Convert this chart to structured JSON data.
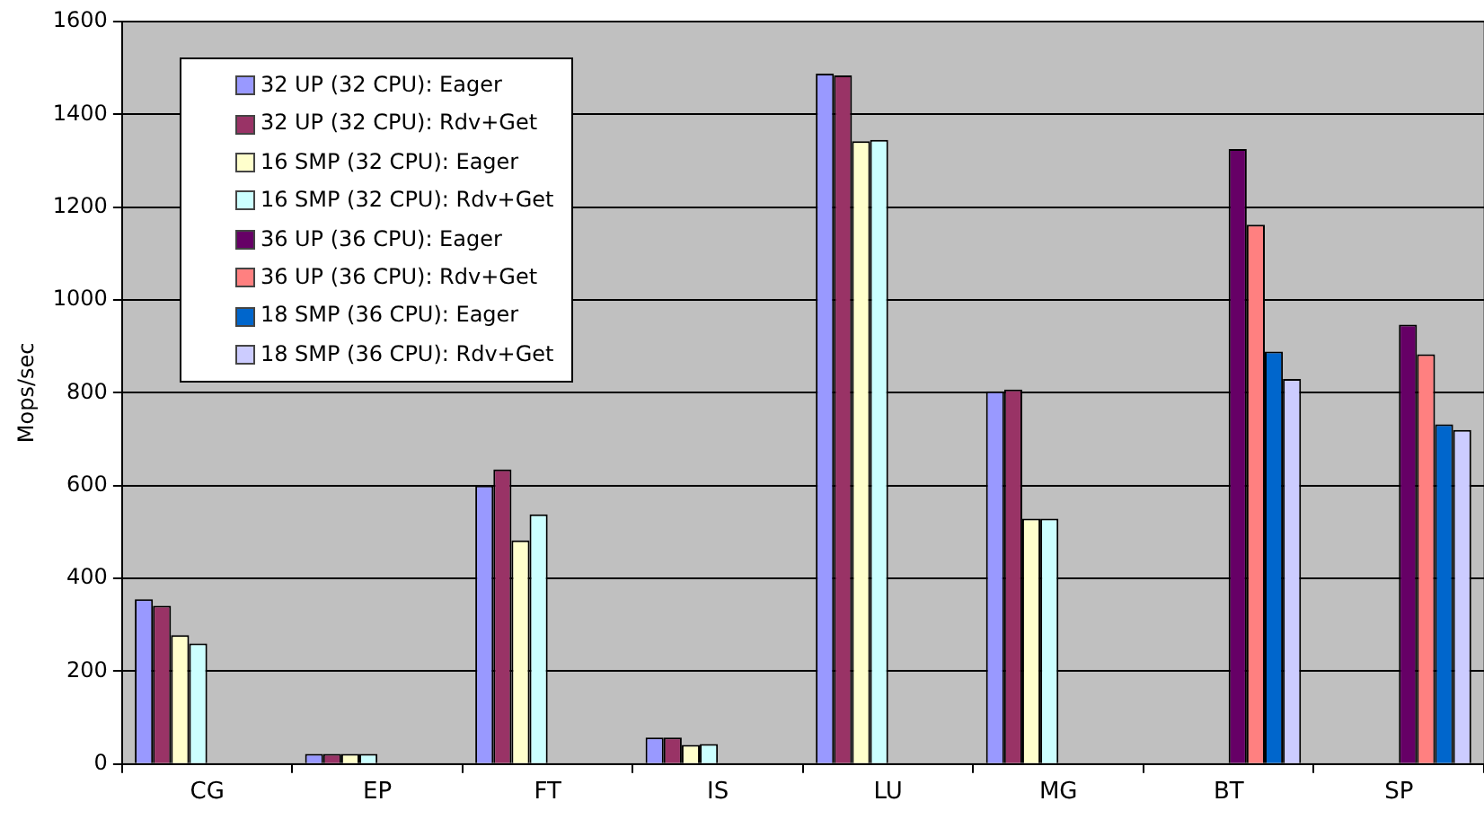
{
  "chart_data": {
    "type": "bar",
    "ylabel": "Mops/sec",
    "categories": [
      "CG",
      "EP",
      "FT",
      "IS",
      "LU",
      "MG",
      "BT",
      "SP"
    ],
    "ylim": [
      0,
      1600
    ],
    "yticks": [
      0,
      200,
      400,
      600,
      800,
      1000,
      1200,
      1400,
      1600
    ],
    "grid": "y",
    "legend": "top left",
    "series": [
      {
        "name": "32 UP (32 CPU): Eager",
        "color": "#9999ff",
        "values": [
          355,
          22,
          600,
          57,
          1488,
          803,
          null,
          null
        ]
      },
      {
        "name": "32 UP (32 CPU): Rdv+Get",
        "color": "#993366",
        "values": [
          341,
          22,
          635,
          57,
          1484,
          807,
          null,
          null
        ]
      },
      {
        "name": "16 SMP (32 CPU): Eager",
        "color": "#ffffcc",
        "values": [
          278,
          22,
          482,
          41,
          1342,
          529,
          null,
          null
        ]
      },
      {
        "name": "16 SMP (32 CPU): Rdv+Get",
        "color": "#ccffff",
        "values": [
          260,
          22,
          538,
          43,
          1345,
          529,
          null,
          null
        ]
      },
      {
        "name": "36 UP (36 CPU): Eager",
        "color": "#660066",
        "values": [
          null,
          null,
          null,
          null,
          null,
          null,
          1325,
          947
        ]
      },
      {
        "name": "36 UP (36 CPU): Rdv+Get",
        "color": "#ff8080",
        "values": [
          null,
          null,
          null,
          null,
          null,
          null,
          1162,
          883
        ]
      },
      {
        "name": "18 SMP (36 CPU): Eager",
        "color": "#0066cc",
        "values": [
          null,
          null,
          null,
          null,
          null,
          null,
          889,
          732
        ]
      },
      {
        "name": "18 SMP (36 CPU): Rdv+Get",
        "color": "#ccccff",
        "values": [
          null,
          null,
          null,
          null,
          null,
          null,
          830,
          720
        ]
      }
    ]
  }
}
